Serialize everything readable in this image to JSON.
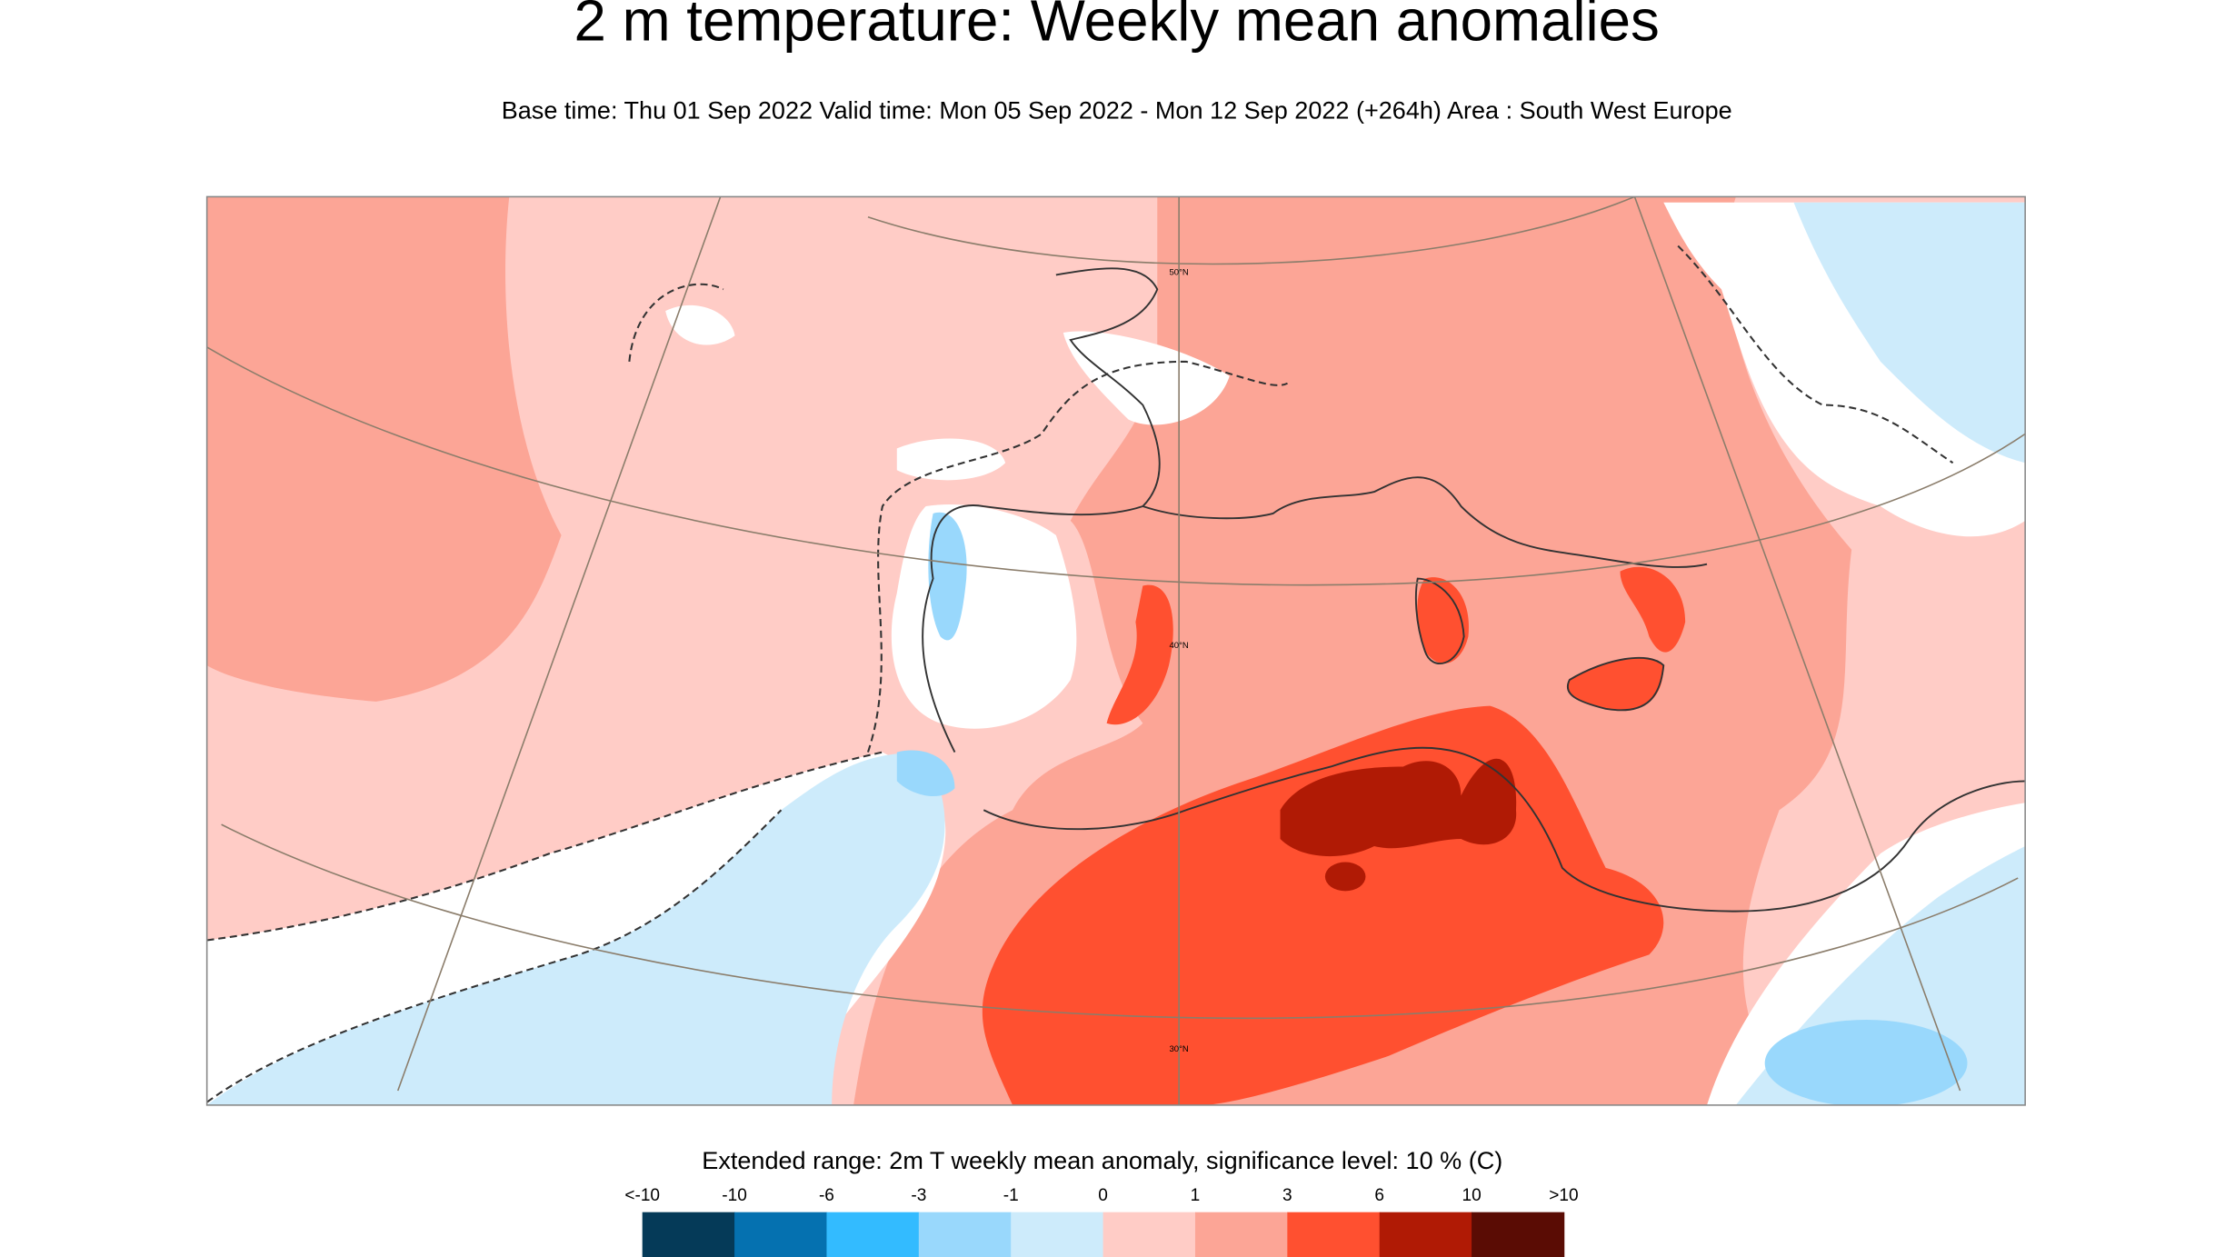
{
  "header": {
    "title": "2 m temperature: Weekly mean anomalies",
    "subtitle": "Base time: Thu 01 Sep 2022 Valid time: Mon 05 Sep 2022 - Mon 12 Sep 2022 (+264h) Area : South West Europe"
  },
  "map": {
    "latitude_labels": [
      "50°N",
      "40°N",
      "30°N"
    ]
  },
  "legend": {
    "caption": "Extended range: 2m T weekly mean anomaly, significance level: 10 % (C)",
    "labels": [
      "<-10",
      "-10",
      "-6",
      "-3",
      "-1",
      "0",
      "1",
      "3",
      "6",
      "10",
      ">10"
    ],
    "colors": [
      "#053a58",
      "#0571b0",
      "#33bbff",
      "#99d8fc",
      "#cdebfb",
      "#ffccc6",
      "#fca596",
      "#ff5030",
      "#b01a05",
      "#5a0c04"
    ]
  }
}
